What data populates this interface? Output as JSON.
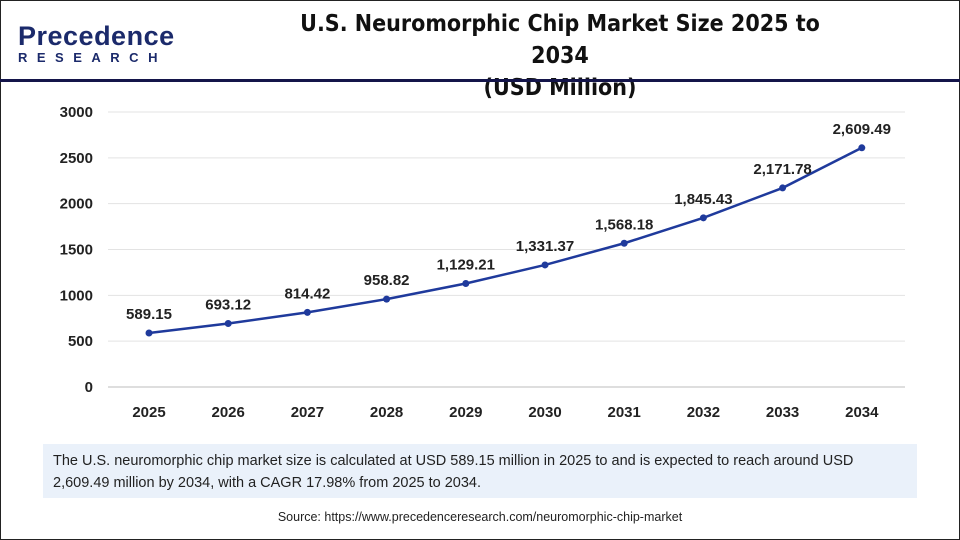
{
  "logo": {
    "line1": "Precedence",
    "line2": "RESEARCH"
  },
  "header": {
    "title_line1": "U.S. Neuromorphic Chip Market Size 2025 to 2034",
    "title_line2": "(USD Million)"
  },
  "chart_data": {
    "type": "line",
    "title": "U.S. Neuromorphic Chip Market Size 2025 to 2034 (USD Million)",
    "categories": [
      "2025",
      "2026",
      "2027",
      "2028",
      "2029",
      "2030",
      "2031",
      "2032",
      "2033",
      "2034"
    ],
    "values": [
      589.15,
      693.12,
      814.42,
      958.82,
      1129.21,
      1331.37,
      1568.18,
      1845.43,
      2171.78,
      2609.49
    ],
    "data_labels": [
      "589.15",
      "693.12",
      "814.42",
      "958.82",
      "1,129.21",
      "1,331.37",
      "1,568.18",
      "1,845.43",
      "2,171.78",
      "2,609.49"
    ],
    "yticks": [
      "0",
      "500",
      "1000",
      "1500",
      "2000",
      "2500",
      "3000"
    ],
    "ylim": [
      0,
      3000
    ],
    "grid": true,
    "line_color": "#1f3a9c"
  },
  "note": "The U.S. neuromorphic chip market size is calculated at USD 589.15 million in 2025 to and is expected to reach around USD 2,609.49 million by 2034, with a CAGR 17.98% from 2025 to 2034.",
  "source": "Source: https://www.precedenceresearch.com/neuromorphic-chip-market"
}
